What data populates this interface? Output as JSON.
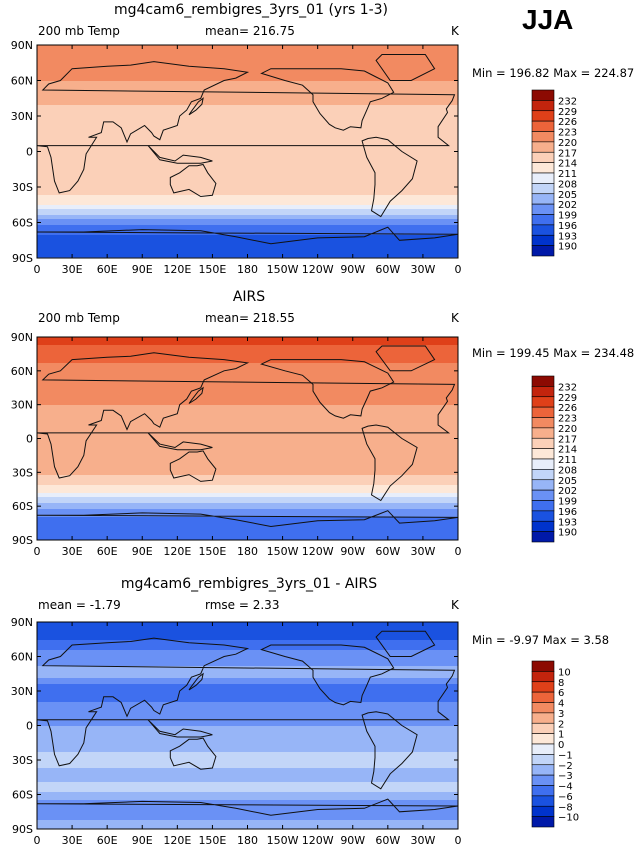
{
  "season": "JJA",
  "panels": [
    {
      "title": "mg4cam6_rembigres_3yrs_01 (yrs 1-3)",
      "left_label": "200 mb Temp",
      "mid_label": "mean= 216.75",
      "right_label": "K",
      "minmax": "Min =  196.82  Max =  224.87"
    },
    {
      "title": "AIRS",
      "left_label": "200 mb Temp",
      "mid_label": "mean= 218.55",
      "right_label": "K",
      "minmax": "Min =  199.45  Max =  234.48"
    },
    {
      "title": "mg4cam6_rembigres_3yrs_01 - AIRS",
      "left_label": "mean =  -1.79",
      "mid_label": "rmse =    2.33",
      "right_label": "K",
      "minmax": "Min =   -9.97  Max =    3.58"
    }
  ],
  "colors": {
    "temp_levels": [
      "#00007f",
      "#0019a8",
      "#0033cc",
      "#1a52e0",
      "#3f6fef",
      "#6a91f5",
      "#97b5f7",
      "#c2d5f8",
      "#e8eefa",
      "#fde8d8",
      "#fbd0b8",
      "#f7af8c",
      "#f28a61",
      "#ec643a",
      "#df4019",
      "#c3240d",
      "#8c0a02"
    ],
    "diff_levels": [
      "#00007f",
      "#0019a8",
      "#0033cc",
      "#1a52e0",
      "#3f6fef",
      "#6a91f5",
      "#97b5f7",
      "#c2d5f8",
      "#e8eefa",
      "#fde8d8",
      "#fbd0b8",
      "#f7af8c",
      "#f28a61",
      "#ec643a",
      "#df4019",
      "#c3240d",
      "#8c0a02"
    ]
  },
  "chart_data": [
    {
      "type": "heatmap",
      "title": "mg4cam6_rembigres_3yrs_01 (yrs 1-3)",
      "variable": "200 mb Temp",
      "units": "K",
      "mean": 216.75,
      "min": 196.82,
      "max": 224.87,
      "x_ticks": [
        "0",
        "30E",
        "60E",
        "90E",
        "120E",
        "150E",
        "180",
        "150W",
        "120W",
        "90W",
        "60W",
        "30W",
        "0"
      ],
      "y_ticks": [
        "90N",
        "60N",
        "30N",
        "0",
        "30S",
        "60S",
        "90S"
      ],
      "colorbar_levels": [
        "232",
        "229",
        "226",
        "223",
        "220",
        "217",
        "214",
        "211",
        "208",
        "205",
        "202",
        "199",
        "196",
        "193",
        "190"
      ],
      "zonal_profile": {
        "lat": [
          90,
          75,
          60,
          45,
          30,
          15,
          0,
          -15,
          -30,
          -45,
          -55,
          -65,
          -75,
          -90
        ],
        "value": [
          225,
          224,
          223,
          221,
          218,
          217.5,
          217.5,
          217,
          219,
          214,
          207,
          200,
          198,
          199
        ]
      }
    },
    {
      "type": "heatmap",
      "title": "AIRS",
      "variable": "200 mb Temp",
      "units": "K",
      "mean": 218.55,
      "min": 199.45,
      "max": 234.48,
      "x_ticks": [
        "0",
        "30E",
        "60E",
        "90E",
        "120E",
        "150E",
        "180",
        "150W",
        "120W",
        "90W",
        "60W",
        "30W",
        "0"
      ],
      "y_ticks": [
        "90N",
        "60N",
        "30N",
        "0",
        "30S",
        "60S",
        "90S"
      ],
      "colorbar_levels": [
        "232",
        "229",
        "226",
        "223",
        "220",
        "217",
        "214",
        "211",
        "208",
        "205",
        "202",
        "199",
        "196",
        "193",
        "190"
      ],
      "zonal_profile": {
        "lat": [
          90,
          75,
          60,
          45,
          30,
          15,
          0,
          -15,
          -30,
          -45,
          -55,
          -65,
          -75,
          -90
        ],
        "value": [
          231,
          227,
          225,
          224,
          223,
          221,
          220,
          220,
          221,
          216,
          209,
          203,
          201,
          200
        ]
      }
    },
    {
      "type": "heatmap",
      "title": "mg4cam6_rembigres_3yrs_01 - AIRS",
      "variable": "difference",
      "units": "K",
      "mean": -1.79,
      "rmse": 2.33,
      "min": -9.97,
      "max": 3.58,
      "x_ticks": [
        "0",
        "30E",
        "60E",
        "90E",
        "120E",
        "150E",
        "180",
        "150W",
        "120W",
        "90W",
        "60W",
        "30W",
        "0"
      ],
      "y_ticks": [
        "90N",
        "60N",
        "30N",
        "0",
        "30S",
        "60S",
        "90S"
      ],
      "colorbar_levels": [
        "10",
        "8",
        "6",
        "4",
        "3",
        "2",
        "1",
        "0",
        "−1",
        "−2",
        "−3",
        "−4",
        "−6",
        "−8",
        "−10"
      ],
      "zonal_profile": {
        "lat": [
          90,
          75,
          60,
          45,
          30,
          15,
          0,
          -15,
          -30,
          -45,
          -55,
          -65,
          -75,
          -90
        ],
        "value": [
          -6,
          -4,
          -2.5,
          -1.5,
          -4,
          -2.5,
          -2,
          -1.5,
          -0.5,
          -1.5,
          -0.5,
          -2,
          -2.5,
          -1.5
        ]
      }
    }
  ]
}
